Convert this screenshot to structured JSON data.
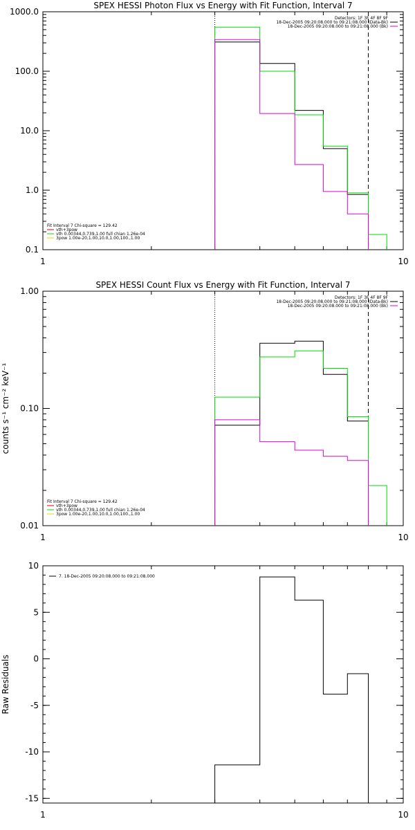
{
  "chart_data": [
    {
      "type": "line",
      "title": "SPEX HESSI Photon Flux vs Energy with Fit Function, Interval 7",
      "xlabel": "",
      "ylabel": "",
      "x_scale": "log",
      "y_scale": "log",
      "xlim": [
        1,
        10
      ],
      "ylim": [
        0.1,
        1000
      ],
      "x_ticks": [
        "1",
        "10"
      ],
      "y_ticks": [
        "1000.0",
        "100.0",
        "10.0",
        "1.0",
        "0.1"
      ],
      "grid": false,
      "legend_top_right": [
        "Detectors: 1F 3F 4F 8F 9F",
        "18-Dec-2005 09:20:08.000 to 09:21:08.000 (Data-Bk)",
        "18-Dec-2005 09:20:08.000 to 09:21:08.000 (Bk)"
      ],
      "legend_bottom_left": [
        "Fit Interval 7   Chi-square = 129.42",
        "vth+3pow",
        "vth 0.00344,0.739,1.00  full chian 1.26e-04",
        "3pow 1.00e-20,1.00,10.0,1.00,100.,1.00"
      ],
      "vlines": [
        {
          "x": 3,
          "style": "dotted"
        },
        {
          "x": 8,
          "style": "dashed"
        }
      ],
      "bin_edges": [
        3,
        4,
        5,
        6,
        7,
        8,
        9
      ],
      "series": [
        {
          "color": "#000000",
          "values": [
            310,
            135,
            22,
            5,
            0.85,
            null
          ]
        },
        {
          "color": "#00dd00",
          "values": [
            550,
            100,
            18.5,
            5.5,
            0.9,
            0.18
          ]
        },
        {
          "color": "#dd00dd",
          "values": [
            340,
            19.5,
            2.7,
            0.95,
            0.4,
            null
          ]
        }
      ]
    },
    {
      "type": "line",
      "title": "SPEX HESSI Count Flux vs Energy with Fit Function, Interval 7",
      "xlabel": "",
      "ylabel": "counts s⁻¹ cm⁻² keV⁻¹",
      "x_scale": "log",
      "y_scale": "log",
      "xlim": [
        1,
        10
      ],
      "ylim": [
        0.01,
        1
      ],
      "x_ticks": [
        "1",
        "10"
      ],
      "y_ticks": [
        "1.00",
        "0.10",
        "0.01"
      ],
      "grid": false,
      "legend_top_right": [
        "Detectors: 1F 3F 4F 8F 9F",
        "18-Dec-2005 09:20:08.000 to 09:21:08.000 (Data-Bk)",
        "18-Dec-2005 09:20:08.000 to 09:21:08.000 (Bk)"
      ],
      "legend_bottom_left": [
        "Fit Interval 7   Chi-square = 129.42",
        "vth+3pow",
        "vth 0.00344,0.739,1.00  full chian 1.26e-04",
        "3pow 1.00e-20,1.00,10.0,1.00,100.,1.00"
      ],
      "vlines": [
        {
          "x": 3,
          "style": "dotted"
        },
        {
          "x": 8,
          "style": "dashed"
        }
      ],
      "bin_edges": [
        3,
        4,
        5,
        6,
        7,
        8,
        9
      ],
      "series": [
        {
          "color": "#000000",
          "values": [
            0.072,
            0.36,
            0.375,
            0.195,
            0.078,
            null
          ]
        },
        {
          "color": "#00dd00",
          "values": [
            0.125,
            0.275,
            0.31,
            0.22,
            0.085,
            0.022
          ]
        },
        {
          "color": "#dd00dd",
          "values": [
            0.08,
            0.052,
            0.044,
            0.039,
            0.036,
            null
          ]
        }
      ]
    },
    {
      "type": "line",
      "title": "",
      "xlabel": "",
      "ylabel": "Raw Residuals",
      "x_scale": "log",
      "y_scale": "linear",
      "xlim": [
        1,
        10
      ],
      "ylim": [
        -15.5,
        10
      ],
      "x_ticks": [
        "1",
        "10"
      ],
      "y_ticks": [
        "10",
        "5",
        "0",
        "-5",
        "-10",
        "-15"
      ],
      "grid": false,
      "legend_top_left": [
        "7. 18-Dec-2005 09:20:08.000 to 09:21:08.000"
      ],
      "bin_edges": [
        3,
        4,
        5,
        6,
        7,
        8
      ],
      "series": [
        {
          "color": "#000000",
          "values": [
            -11.4,
            8.8,
            6.3,
            -3.8,
            -1.6
          ]
        }
      ]
    }
  ]
}
